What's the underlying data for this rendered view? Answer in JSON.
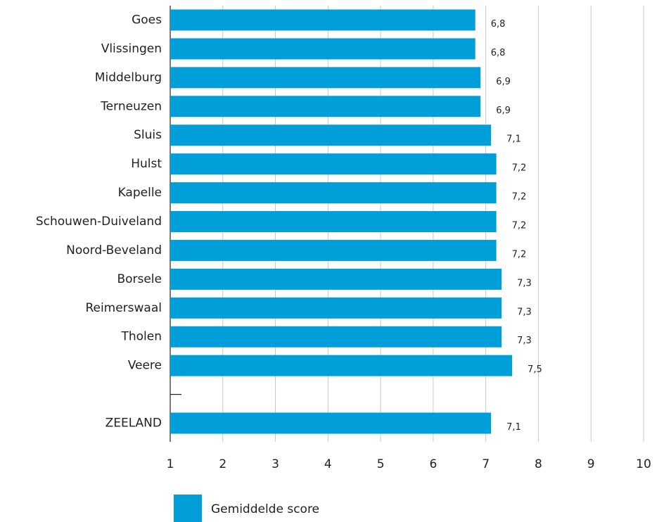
{
  "chart_data": {
    "type": "bar",
    "orientation": "horizontal",
    "categories": [
      "Goes",
      "Vlissingen",
      "Middelburg",
      "Terneuzen",
      "Sluis",
      "Hulst",
      "Kapelle",
      "Schouwen-Duiveland",
      "Noord-Beveland",
      "Borsele",
      "Reimerswaal",
      "Tholen",
      "Veere",
      null,
      "ZEELAND"
    ],
    "series": [
      {
        "name": "Gemiddelde score",
        "color": "#009fda",
        "values": [
          6.8,
          6.8,
          6.9,
          6.9,
          7.1,
          7.2,
          7.2,
          7.2,
          7.2,
          7.3,
          7.3,
          7.3,
          7.5,
          null,
          7.1
        ],
        "value_labels": [
          "6,8",
          "6,8",
          "6,9",
          "6,9",
          "7,1",
          "7,2",
          "7,2",
          "7,2",
          "7,2",
          "7,3",
          "7,3",
          "7,3",
          "7,5",
          null,
          "7,1"
        ]
      }
    ],
    "xlim": [
      1,
      10
    ],
    "xticks": [
      1,
      2,
      3,
      4,
      5,
      6,
      7,
      8,
      9,
      10
    ],
    "grid": true,
    "legend": "bottom"
  }
}
